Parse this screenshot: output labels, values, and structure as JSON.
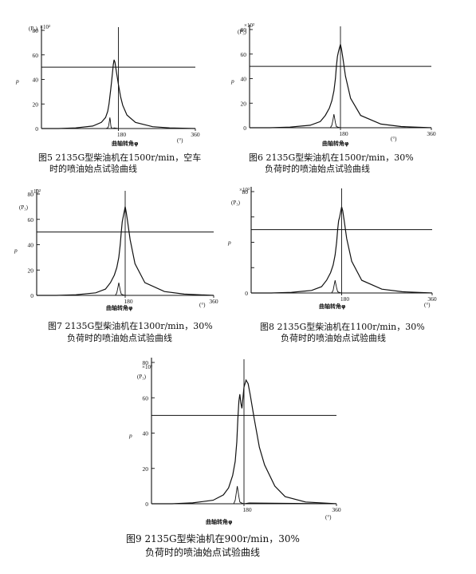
{
  "figures": [
    {
      "id": "fig5",
      "caption_line1": "图5 2135G型柴油机在1500r/min，空车",
      "caption_line2": "时的喷油始点试验曲线",
      "y_unit": "(P₃)",
      "y_multiplier": "×10²",
      "y_symbol": "p",
      "x_label": "曲轴转角φ",
      "x_unit": "(°)",
      "chart_data": {
        "type": "line",
        "x": [
          0,
          40,
          80,
          120,
          140,
          150,
          155,
          158,
          160,
          162,
          164,
          166,
          168,
          170,
          172,
          175,
          180,
          185,
          190,
          200,
          220,
          260,
          300,
          360
        ],
        "series": [
          {
            "values": [
              0,
              0,
              0.5,
              2,
              5,
              9,
              14,
              20,
              26,
              32,
              38,
              45,
              52,
              56,
              54,
              47,
              36,
              26,
              19,
              11,
              5,
              1.5,
              0.5,
              0
            ]
          }
        ],
        "needle_x": [
          0,
          150,
          155,
          157,
          159,
          160,
          161,
          162,
          163,
          166,
          170,
          180,
          360
        ],
        "needle_values": [
          0,
          0,
          0.5,
          2,
          6,
          9,
          7,
          3,
          1,
          0,
          0.5,
          0,
          0
        ],
        "reference_level": 50,
        "xlim": [
          0,
          360
        ],
        "ylim": [
          0,
          80
        ],
        "x_ticks": [
          "180",
          "360"
        ],
        "y_ticks": [
          "20",
          "40",
          "60",
          "80"
        ]
      }
    },
    {
      "id": "fig6",
      "caption_line1": "图6 2135G型柴油机在1500r/min，30%",
      "caption_line2": "负荷时的喷油始点试验曲线",
      "y_unit": "(P₃)",
      "y_multiplier": "×10²",
      "y_symbol": "p",
      "x_label": "曲轴转角φ",
      "x_unit": "(°)",
      "chart_data": {
        "type": "line",
        "x": [
          0,
          40,
          80,
          120,
          140,
          150,
          158,
          163,
          167,
          170,
          172,
          174,
          176,
          178,
          180,
          182,
          185,
          190,
          200,
          220,
          260,
          300,
          360
        ],
        "series": [
          {
            "values": [
              0,
              0,
              0.5,
              2,
              5,
              10,
              16,
              22,
              30,
              40,
              50,
              58,
              62,
              65,
              68,
              64,
              56,
              42,
              24,
              10,
              3,
              1,
              0
            ]
          }
        ],
        "needle_x": [
          0,
          160,
          163,
          165,
          167,
          168,
          170,
          172,
          175,
          180,
          360
        ],
        "needle_values": [
          0,
          0,
          2,
          6,
          11,
          9,
          4,
          1,
          0.5,
          0,
          0
        ],
        "reference_level": 50,
        "xlim": [
          0,
          360
        ],
        "ylim": [
          0,
          80
        ],
        "x_ticks": [
          "180",
          "360"
        ],
        "y_ticks": [
          "20",
          "40",
          "60",
          "80"
        ]
      }
    },
    {
      "id": "fig7",
      "caption_line1": "图7 2135G型柴油机在1300r/min，30%",
      "caption_line2": "负荷时的喷油始点试验曲线",
      "y_unit": "(P₃)",
      "y_multiplier": "×10²",
      "y_symbol": "p",
      "x_label": "曲轴转角φ",
      "x_unit": "(°)",
      "chart_data": {
        "type": "line",
        "x": [
          0,
          40,
          80,
          120,
          140,
          150,
          158,
          163,
          167,
          170,
          172,
          174,
          176,
          178,
          180,
          182,
          185,
          190,
          200,
          220,
          260,
          300,
          360
        ],
        "series": [
          {
            "values": [
              0,
              0,
              0.5,
              2,
              5,
              10,
              16,
              22,
              30,
              40,
              50,
              58,
              62,
              66,
              70,
              66,
              58,
              44,
              25,
              10,
              3,
              1,
              0
            ]
          }
        ],
        "needle_x": [
          0,
          160,
          163,
          165,
          167,
          168,
          170,
          172,
          175,
          180,
          360
        ],
        "needle_values": [
          0,
          0,
          2,
          6,
          10,
          8,
          4,
          1,
          0.5,
          0,
          0
        ],
        "reference_level": 50,
        "xlim": [
          0,
          360
        ],
        "ylim": [
          0,
          80
        ],
        "x_ticks": [
          "180",
          "360"
        ],
        "y_ticks": [
          "20",
          "40",
          "60",
          "80"
        ]
      }
    },
    {
      "id": "fig8",
      "caption_line1": "图8 2135G型柴油机在1100r/min，30%",
      "caption_line2": "负荷时的喷油始点试验曲线",
      "y_unit": "(P₃)",
      "y_multiplier": "×10²",
      "y_symbol": "p",
      "x_label": "曲轴转角φ",
      "x_unit": "(°)",
      "chart_data": {
        "type": "line",
        "x": [
          0,
          40,
          80,
          120,
          140,
          150,
          158,
          163,
          167,
          170,
          172,
          174,
          176,
          178,
          180,
          182,
          185,
          190,
          200,
          220,
          260,
          300,
          360
        ],
        "series": [
          {
            "values": [
              0,
              0,
              0.5,
              2,
              5,
              10,
              16,
              22,
              30,
              40,
              50,
              57,
              60,
              64,
              68,
              65,
              57,
              43,
              25,
              10,
              3,
              1,
              0
            ]
          }
        ],
        "needle_x": [
          0,
          160,
          163,
          165,
          167,
          168,
          170,
          172,
          175,
          180,
          360
        ],
        "needle_values": [
          0,
          0,
          2,
          6,
          10,
          8,
          4,
          1,
          0.5,
          0,
          0
        ],
        "reference_level": 50,
        "xlim": [
          0,
          360
        ],
        "ylim": [
          0,
          80
        ],
        "x_ticks": [
          "180",
          "360"
        ],
        "y_ticks": [
          "20",
          "40",
          "60",
          "80"
        ]
      }
    },
    {
      "id": "fig9",
      "caption_line1": "图9 2135G型柴油机在900r/min，30%",
      "caption_line2": "负荷时的喷油始点试验曲线",
      "y_unit": "(P₃)",
      "y_multiplier": "×10²",
      "y_symbol": "p",
      "x_label": "曲轴转角φ",
      "x_unit": "(°)",
      "chart_data": {
        "type": "line",
        "x": [
          0,
          40,
          80,
          120,
          140,
          150,
          158,
          163,
          166,
          168,
          170,
          172,
          174,
          176,
          178,
          180,
          184,
          188,
          192,
          200,
          210,
          220,
          240,
          260,
          300,
          360
        ],
        "series": [
          {
            "values": [
              0,
              0,
              0.5,
              2,
              5,
              9,
              16,
              24,
              35,
              48,
              58,
              62,
              57,
              54,
              60,
              66,
              70,
              68,
              62,
              48,
              32,
              22,
              10,
              4,
              1,
              0
            ]
          }
        ],
        "needle_x": [
          0,
          160,
          163,
          165,
          167,
          168,
          170,
          172,
          175,
          180,
          190,
          360
        ],
        "needle_values": [
          0,
          0,
          2,
          6,
          10,
          8,
          4,
          1,
          0.5,
          0,
          0.5,
          0
        ],
        "reference_level": 50,
        "xlim": [
          0,
          360
        ],
        "ylim": [
          0,
          80
        ],
        "x_ticks": [
          "180",
          "360"
        ],
        "y_ticks": [
          "20",
          "40",
          "60",
          "80"
        ]
      }
    }
  ]
}
